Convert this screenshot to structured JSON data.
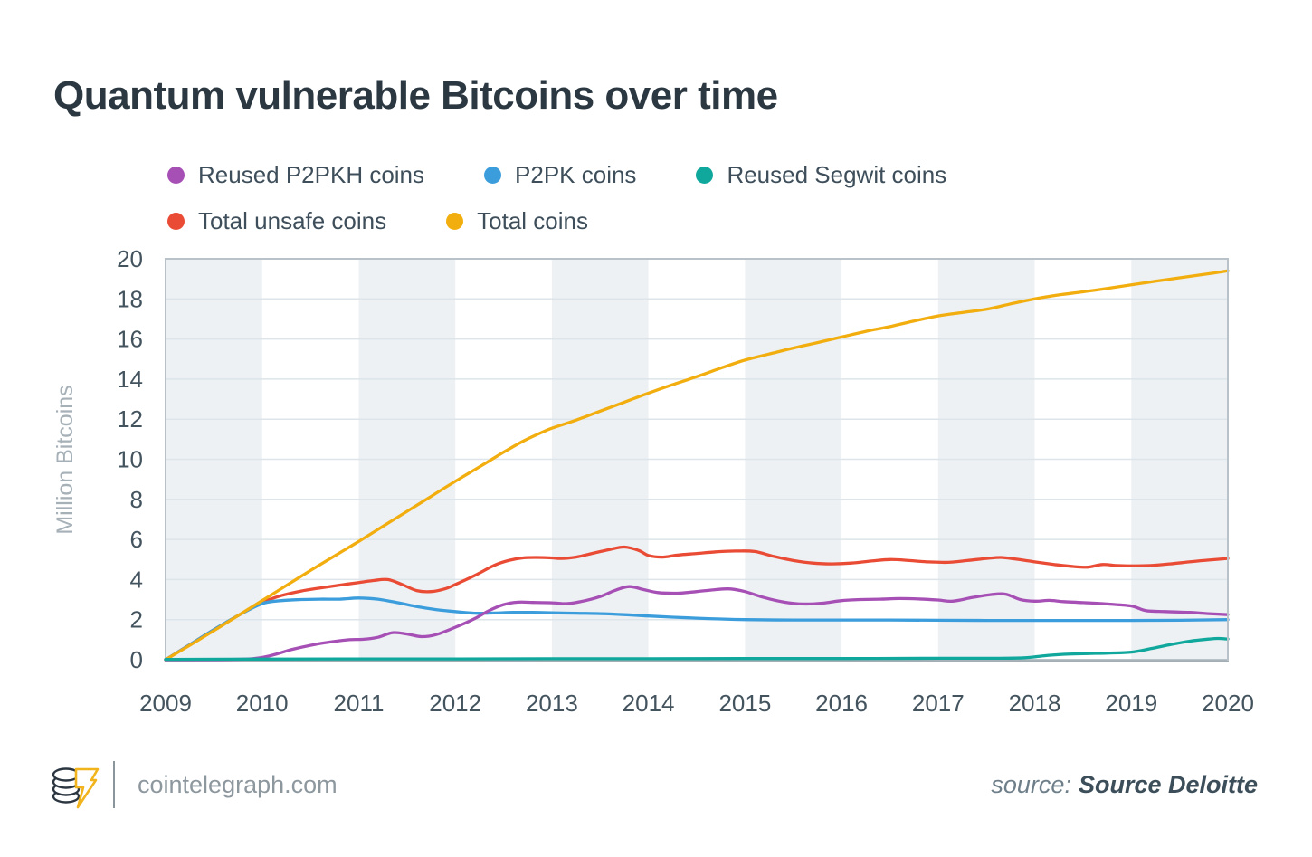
{
  "title": "Quantum vulnerable Bitcoins over time",
  "legend": [
    {
      "label": "Reused P2PKH coins",
      "color": "#a64fb5"
    },
    {
      "label": "P2PK coins",
      "color": "#3b9ddb"
    },
    {
      "label": "Reused Segwit coins",
      "color": "#10a79c"
    },
    {
      "label": "Total unsafe coins",
      "color": "#e94b35"
    },
    {
      "label": "Total coins",
      "color": "#f2ae0e"
    }
  ],
  "footer": {
    "logo": "cointelegraph-logo",
    "site": "cointelegraph.com",
    "source_prefix": "source:",
    "source_name": "Source Deloitte"
  },
  "chart_data": {
    "type": "line",
    "title": "Quantum vulnerable Bitcoins over time",
    "xlabel": "",
    "ylabel": "Million Bitcoins",
    "xlim": [
      2009,
      2020
    ],
    "ylim": [
      0,
      20
    ],
    "x_ticks": [
      "2009",
      "2010",
      "2011",
      "2012",
      "2013",
      "2014",
      "2015",
      "2016",
      "2017",
      "2018",
      "2019",
      "2020"
    ],
    "y_ticks": [
      0,
      2,
      4,
      6,
      8,
      10,
      12,
      14,
      16,
      18,
      20
    ],
    "grid": "horizontal",
    "legend_position": "top",
    "band_years": [
      2009,
      2011,
      2013,
      2015,
      2017,
      2019
    ],
    "colors": {
      "band": "#edf1f4",
      "gridline": "#dde5ea",
      "border": "#b9c2c8",
      "axis": "#a3adb4",
      "tick_text": "#44545f",
      "ylabel_text": "#a6b0b7"
    },
    "series": [
      {
        "name": "Total unsafe coins",
        "color": "#e94b35",
        "points": [
          [
            2009,
            0
          ],
          [
            2009.25,
            0.75
          ],
          [
            2009.5,
            1.5
          ],
          [
            2009.75,
            2.2
          ],
          [
            2010,
            2.85
          ],
          [
            2010.2,
            3.2
          ],
          [
            2010.4,
            3.42
          ],
          [
            2010.6,
            3.58
          ],
          [
            2010.8,
            3.72
          ],
          [
            2011,
            3.85
          ],
          [
            2011.15,
            3.95
          ],
          [
            2011.3,
            4.0
          ],
          [
            2011.45,
            3.75
          ],
          [
            2011.6,
            3.45
          ],
          [
            2011.75,
            3.4
          ],
          [
            2011.9,
            3.55
          ],
          [
            2012,
            3.75
          ],
          [
            2012.2,
            4.2
          ],
          [
            2012.4,
            4.7
          ],
          [
            2012.55,
            4.95
          ],
          [
            2012.7,
            5.08
          ],
          [
            2012.85,
            5.1
          ],
          [
            2013,
            5.08
          ],
          [
            2013.1,
            5.05
          ],
          [
            2013.25,
            5.12
          ],
          [
            2013.4,
            5.28
          ],
          [
            2013.6,
            5.5
          ],
          [
            2013.75,
            5.62
          ],
          [
            2013.9,
            5.45
          ],
          [
            2014,
            5.2
          ],
          [
            2014.15,
            5.12
          ],
          [
            2014.3,
            5.22
          ],
          [
            2014.5,
            5.3
          ],
          [
            2014.7,
            5.38
          ],
          [
            2014.9,
            5.42
          ],
          [
            2015.1,
            5.4
          ],
          [
            2015.3,
            5.15
          ],
          [
            2015.5,
            4.95
          ],
          [
            2015.7,
            4.82
          ],
          [
            2015.9,
            4.78
          ],
          [
            2016.1,
            4.82
          ],
          [
            2016.3,
            4.92
          ],
          [
            2016.5,
            5.0
          ],
          [
            2016.7,
            4.95
          ],
          [
            2016.9,
            4.88
          ],
          [
            2017.1,
            4.86
          ],
          [
            2017.3,
            4.95
          ],
          [
            2017.5,
            5.05
          ],
          [
            2017.65,
            5.1
          ],
          [
            2017.8,
            5.02
          ],
          [
            2018,
            4.88
          ],
          [
            2018.2,
            4.75
          ],
          [
            2018.4,
            4.65
          ],
          [
            2018.55,
            4.62
          ],
          [
            2018.7,
            4.75
          ],
          [
            2018.85,
            4.7
          ],
          [
            2019,
            4.68
          ],
          [
            2019.2,
            4.7
          ],
          [
            2019.4,
            4.78
          ],
          [
            2019.6,
            4.88
          ],
          [
            2019.8,
            4.97
          ],
          [
            2020,
            5.05
          ]
        ]
      },
      {
        "name": "P2PK coins",
        "color": "#3b9ddb",
        "points": [
          [
            2009,
            0
          ],
          [
            2009.25,
            0.75
          ],
          [
            2009.5,
            1.5
          ],
          [
            2009.75,
            2.2
          ],
          [
            2010,
            2.8
          ],
          [
            2010.2,
            2.95
          ],
          [
            2010.4,
            3.0
          ],
          [
            2010.6,
            3.02
          ],
          [
            2010.8,
            3.02
          ],
          [
            2011,
            3.08
          ],
          [
            2011.2,
            3.02
          ],
          [
            2011.4,
            2.85
          ],
          [
            2011.6,
            2.65
          ],
          [
            2011.8,
            2.5
          ],
          [
            2012,
            2.4
          ],
          [
            2012.2,
            2.32
          ],
          [
            2012.4,
            2.33
          ],
          [
            2012.6,
            2.36
          ],
          [
            2012.8,
            2.36
          ],
          [
            2013,
            2.34
          ],
          [
            2013.25,
            2.32
          ],
          [
            2013.5,
            2.3
          ],
          [
            2013.75,
            2.25
          ],
          [
            2014,
            2.18
          ],
          [
            2014.25,
            2.12
          ],
          [
            2014.5,
            2.07
          ],
          [
            2014.75,
            2.03
          ],
          [
            2015,
            2.0
          ],
          [
            2015.5,
            1.98
          ],
          [
            2016,
            1.98
          ],
          [
            2016.5,
            1.98
          ],
          [
            2017,
            1.97
          ],
          [
            2017.5,
            1.96
          ],
          [
            2018,
            1.96
          ],
          [
            2018.5,
            1.96
          ],
          [
            2019,
            1.96
          ],
          [
            2019.5,
            1.97
          ],
          [
            2020,
            2.0
          ]
        ]
      },
      {
        "name": "Total coins",
        "color": "#f2ae0e",
        "points": [
          [
            2009,
            0
          ],
          [
            2009.25,
            0.72
          ],
          [
            2009.5,
            1.45
          ],
          [
            2009.75,
            2.2
          ],
          [
            2010,
            2.95
          ],
          [
            2010.25,
            3.7
          ],
          [
            2010.5,
            4.45
          ],
          [
            2010.75,
            5.18
          ],
          [
            2011,
            5.9
          ],
          [
            2011.25,
            6.65
          ],
          [
            2011.5,
            7.4
          ],
          [
            2011.75,
            8.15
          ],
          [
            2012,
            8.9
          ],
          [
            2012.25,
            9.62
          ],
          [
            2012.5,
            10.35
          ],
          [
            2012.7,
            10.9
          ],
          [
            2012.9,
            11.35
          ],
          [
            2013,
            11.55
          ],
          [
            2013.25,
            11.95
          ],
          [
            2013.5,
            12.4
          ],
          [
            2013.75,
            12.85
          ],
          [
            2014,
            13.3
          ],
          [
            2014.25,
            13.72
          ],
          [
            2014.5,
            14.12
          ],
          [
            2014.75,
            14.55
          ],
          [
            2015,
            14.95
          ],
          [
            2015.25,
            15.25
          ],
          [
            2015.5,
            15.55
          ],
          [
            2015.75,
            15.82
          ],
          [
            2016,
            16.1
          ],
          [
            2016.25,
            16.38
          ],
          [
            2016.5,
            16.62
          ],
          [
            2016.75,
            16.9
          ],
          [
            2017,
            17.15
          ],
          [
            2017.25,
            17.32
          ],
          [
            2017.5,
            17.48
          ],
          [
            2017.75,
            17.75
          ],
          [
            2018,
            18.0
          ],
          [
            2018.25,
            18.2
          ],
          [
            2018.5,
            18.35
          ],
          [
            2018.75,
            18.52
          ],
          [
            2019,
            18.7
          ],
          [
            2019.25,
            18.88
          ],
          [
            2019.5,
            19.05
          ],
          [
            2019.75,
            19.22
          ],
          [
            2020,
            19.4
          ]
        ]
      },
      {
        "name": "Reused P2PKH coins",
        "color": "#a64fb5",
        "points": [
          [
            2009,
            0
          ],
          [
            2009.5,
            0.01
          ],
          [
            2009.9,
            0.05
          ],
          [
            2010.1,
            0.22
          ],
          [
            2010.3,
            0.5
          ],
          [
            2010.5,
            0.72
          ],
          [
            2010.7,
            0.88
          ],
          [
            2010.9,
            1.0
          ],
          [
            2011.05,
            1.02
          ],
          [
            2011.2,
            1.12
          ],
          [
            2011.35,
            1.35
          ],
          [
            2011.5,
            1.28
          ],
          [
            2011.65,
            1.15
          ],
          [
            2011.8,
            1.25
          ],
          [
            2012,
            1.62
          ],
          [
            2012.2,
            2.05
          ],
          [
            2012.35,
            2.45
          ],
          [
            2012.5,
            2.75
          ],
          [
            2012.65,
            2.87
          ],
          [
            2012.8,
            2.86
          ],
          [
            2013,
            2.84
          ],
          [
            2013.15,
            2.8
          ],
          [
            2013.3,
            2.9
          ],
          [
            2013.5,
            3.15
          ],
          [
            2013.65,
            3.45
          ],
          [
            2013.8,
            3.65
          ],
          [
            2013.95,
            3.5
          ],
          [
            2014.1,
            3.35
          ],
          [
            2014.3,
            3.32
          ],
          [
            2014.5,
            3.4
          ],
          [
            2014.7,
            3.5
          ],
          [
            2014.85,
            3.53
          ],
          [
            2015,
            3.4
          ],
          [
            2015.2,
            3.1
          ],
          [
            2015.4,
            2.88
          ],
          [
            2015.6,
            2.78
          ],
          [
            2015.8,
            2.82
          ],
          [
            2016,
            2.95
          ],
          [
            2016.2,
            3.0
          ],
          [
            2016.4,
            3.02
          ],
          [
            2016.6,
            3.05
          ],
          [
            2016.8,
            3.03
          ],
          [
            2017,
            2.98
          ],
          [
            2017.15,
            2.92
          ],
          [
            2017.35,
            3.1
          ],
          [
            2017.55,
            3.25
          ],
          [
            2017.7,
            3.27
          ],
          [
            2017.85,
            3.0
          ],
          [
            2018,
            2.92
          ],
          [
            2018.15,
            2.96
          ],
          [
            2018.3,
            2.9
          ],
          [
            2018.5,
            2.85
          ],
          [
            2018.75,
            2.78
          ],
          [
            2019,
            2.68
          ],
          [
            2019.15,
            2.45
          ],
          [
            2019.35,
            2.4
          ],
          [
            2019.6,
            2.36
          ],
          [
            2019.8,
            2.3
          ],
          [
            2020,
            2.25
          ]
        ]
      },
      {
        "name": "Reused Segwit coins",
        "color": "#10a79c",
        "points": [
          [
            2009,
            0.02
          ],
          [
            2010,
            0.03
          ],
          [
            2011,
            0.04
          ],
          [
            2012,
            0.04
          ],
          [
            2013,
            0.05
          ],
          [
            2014,
            0.05
          ],
          [
            2015,
            0.06
          ],
          [
            2016,
            0.06
          ],
          [
            2017,
            0.07
          ],
          [
            2017.6,
            0.07
          ],
          [
            2017.9,
            0.1
          ],
          [
            2018.1,
            0.2
          ],
          [
            2018.3,
            0.27
          ],
          [
            2018.5,
            0.3
          ],
          [
            2018.75,
            0.33
          ],
          [
            2019,
            0.38
          ],
          [
            2019.2,
            0.55
          ],
          [
            2019.4,
            0.75
          ],
          [
            2019.6,
            0.92
          ],
          [
            2019.8,
            1.03
          ],
          [
            2019.9,
            1.06
          ],
          [
            2020,
            1.03
          ]
        ]
      }
    ]
  }
}
